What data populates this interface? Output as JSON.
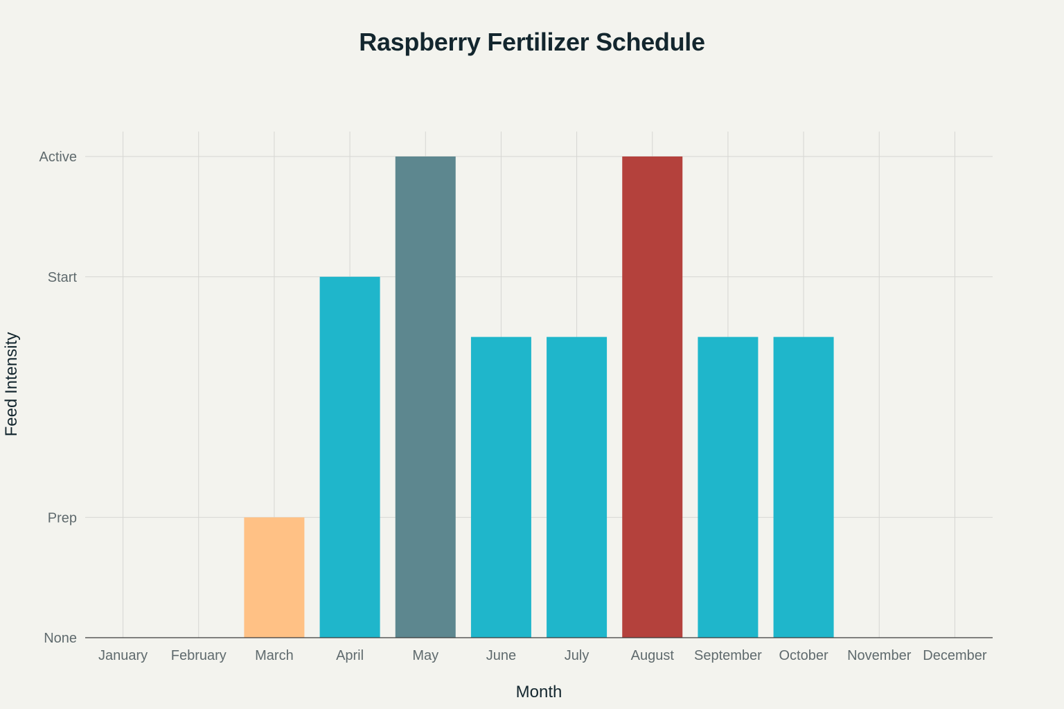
{
  "chart_data": {
    "type": "bar",
    "title": "Raspberry Fertilizer Schedule",
    "xlabel": "Month",
    "ylabel": "Feed Intensity",
    "categories": [
      "January",
      "February",
      "March",
      "April",
      "May",
      "June",
      "July",
      "August",
      "September",
      "October",
      "November",
      "December"
    ],
    "values": [
      0,
      0,
      1,
      3,
      4,
      2.5,
      2.5,
      4,
      2.5,
      2.5,
      0,
      0
    ],
    "bar_colors": [
      "#1fb6cb",
      "#1fb6cb",
      "#ffc185",
      "#1fb6cb",
      "#5d878f",
      "#1fb6cb",
      "#1fb6cb",
      "#b4413c",
      "#1fb6cb",
      "#1fb6cb",
      "#1fb6cb",
      "#1fb6cb"
    ],
    "ylim": [
      0,
      4
    ],
    "y_ticks": [
      {
        "value": 0,
        "label": "None"
      },
      {
        "value": 1,
        "label": "Prep"
      },
      {
        "value": 3,
        "label": "Start"
      },
      {
        "value": 4,
        "label": "Active"
      }
    ],
    "grid": true,
    "legend": "none"
  }
}
